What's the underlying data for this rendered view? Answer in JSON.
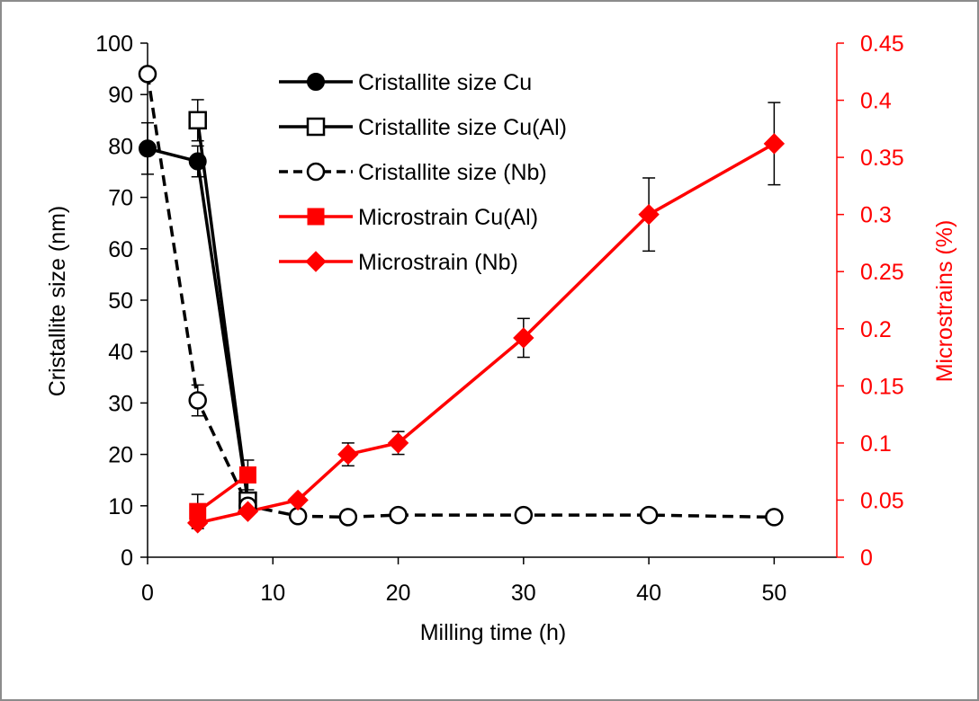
{
  "chart_data": {
    "type": "line",
    "xlabel": "Milling time (h)",
    "ylabel": "Cristallite size (nm)",
    "y2label": "Microstrains (%)",
    "xlim": [
      0,
      55
    ],
    "ylim": [
      0,
      100
    ],
    "y2lim": [
      0,
      0.45
    ],
    "xticks": [
      0,
      10,
      20,
      30,
      40,
      50
    ],
    "yticks": [
      0,
      10,
      20,
      30,
      40,
      50,
      60,
      70,
      80,
      90,
      100
    ],
    "y2ticks": [
      0,
      0.05,
      0.1,
      0.15,
      0.2,
      0.25,
      0.3,
      0.35,
      0.4,
      0.45
    ],
    "xtick_labels": [
      "0",
      "10",
      "20",
      "30",
      "40",
      "50"
    ],
    "ytick_labels": [
      "0",
      "10",
      "20",
      "30",
      "40",
      "50",
      "60",
      "70",
      "80",
      "90",
      "100"
    ],
    "y2tick_labels": [
      "0",
      "0.05",
      "0.1",
      "0.15",
      "0.2",
      "0.25",
      "0.3",
      "0.35",
      "0.4",
      "0.45"
    ],
    "grid": false,
    "legend_position": "top-center",
    "colors": {
      "black": "#000000",
      "red": "#ff0000"
    },
    "series": [
      {
        "name": "Cristallite size Cu",
        "axis": "left",
        "color": "#000000",
        "marker": "filled-circle",
        "line": "solid",
        "x": [
          0,
          4,
          8
        ],
        "y": [
          79.5,
          77,
          11
        ],
        "err": [
          5,
          3,
          1
        ]
      },
      {
        "name": "Cristallite size Cu(Al)",
        "axis": "left",
        "color": "#000000",
        "marker": "open-square",
        "line": "solid",
        "x": [
          4,
          8
        ],
        "y": [
          85,
          11
        ],
        "err": [
          4,
          0
        ]
      },
      {
        "name": "Cristallite size (Nb)",
        "axis": "left",
        "color": "#000000",
        "marker": "open-circle",
        "line": "dashed",
        "x": [
          0,
          4,
          8,
          12,
          16,
          20,
          30,
          40,
          50
        ],
        "y": [
          94,
          30.5,
          10,
          8,
          7.8,
          8.2,
          8.2,
          8.2,
          7.8
        ],
        "err": [
          0,
          3,
          0,
          0,
          0,
          0,
          0,
          0,
          0
        ]
      },
      {
        "name": "Microstrain Cu(Al)",
        "axis": "right",
        "color": "#ff0000",
        "marker": "filled-square",
        "line": "solid",
        "x": [
          4,
          8
        ],
        "y": [
          0.04,
          0.072
        ],
        "err": [
          0.015,
          0.013
        ]
      },
      {
        "name": "Microstrain (Nb)",
        "axis": "right",
        "color": "#ff0000",
        "marker": "filled-diamond",
        "line": "solid",
        "x": [
          4,
          8,
          12,
          16,
          20,
          30,
          40,
          50
        ],
        "y": [
          0.03,
          0.04,
          0.05,
          0.09,
          0.1,
          0.192,
          0.3,
          0.362
        ],
        "err": [
          0,
          0,
          0,
          0.01,
          0.01,
          0.017,
          0.032,
          0.036
        ]
      }
    ]
  }
}
